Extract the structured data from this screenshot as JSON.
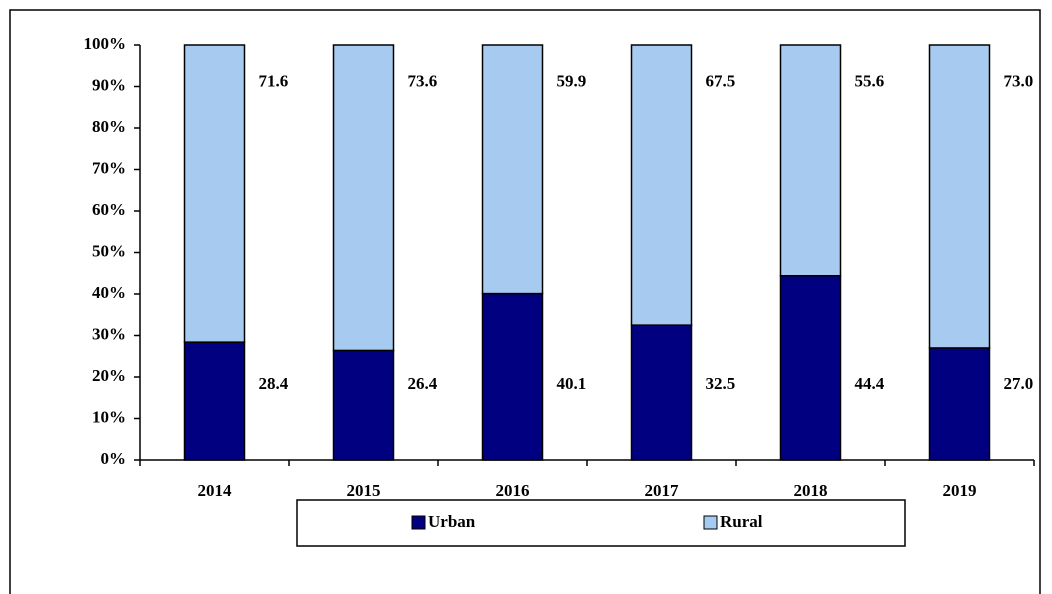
{
  "chart_data": {
    "type": "stacked_bar",
    "categories": [
      "2014",
      "2015",
      "2016",
      "2017",
      "2018",
      "2019"
    ],
    "series": [
      {
        "name": "Urban",
        "color": "#000080",
        "values": [
          28.4,
          26.4,
          40.1,
          32.5,
          44.4,
          27.0
        ],
        "value_labels": [
          "28.4",
          "26.4",
          "40.1",
          "32.5",
          "44.4",
          "27.0"
        ]
      },
      {
        "name": "Rural",
        "color": "#a6caf0",
        "values": [
          71.6,
          73.6,
          59.9,
          67.5,
          55.6,
          73.0
        ],
        "value_labels": [
          "71.6",
          "73.6",
          "59.9",
          "67.5",
          "55.6",
          "73.0"
        ]
      }
    ],
    "ylim": [
      0,
      100
    ],
    "yticks": [
      {
        "value": 0,
        "label": "0%"
      },
      {
        "value": 10,
        "label": "10%"
      },
      {
        "value": 20,
        "label": "20%"
      },
      {
        "value": 30,
        "label": "30%"
      },
      {
        "value": 40,
        "label": "40%"
      },
      {
        "value": 50,
        "label": "50%"
      },
      {
        "value": 60,
        "label": "60%"
      },
      {
        "value": 70,
        "label": "70%"
      },
      {
        "value": 80,
        "label": "80%"
      },
      {
        "value": 90,
        "label": "90%"
      },
      {
        "value": 100,
        "label": "100%"
      }
    ],
    "legend": "bottom"
  }
}
